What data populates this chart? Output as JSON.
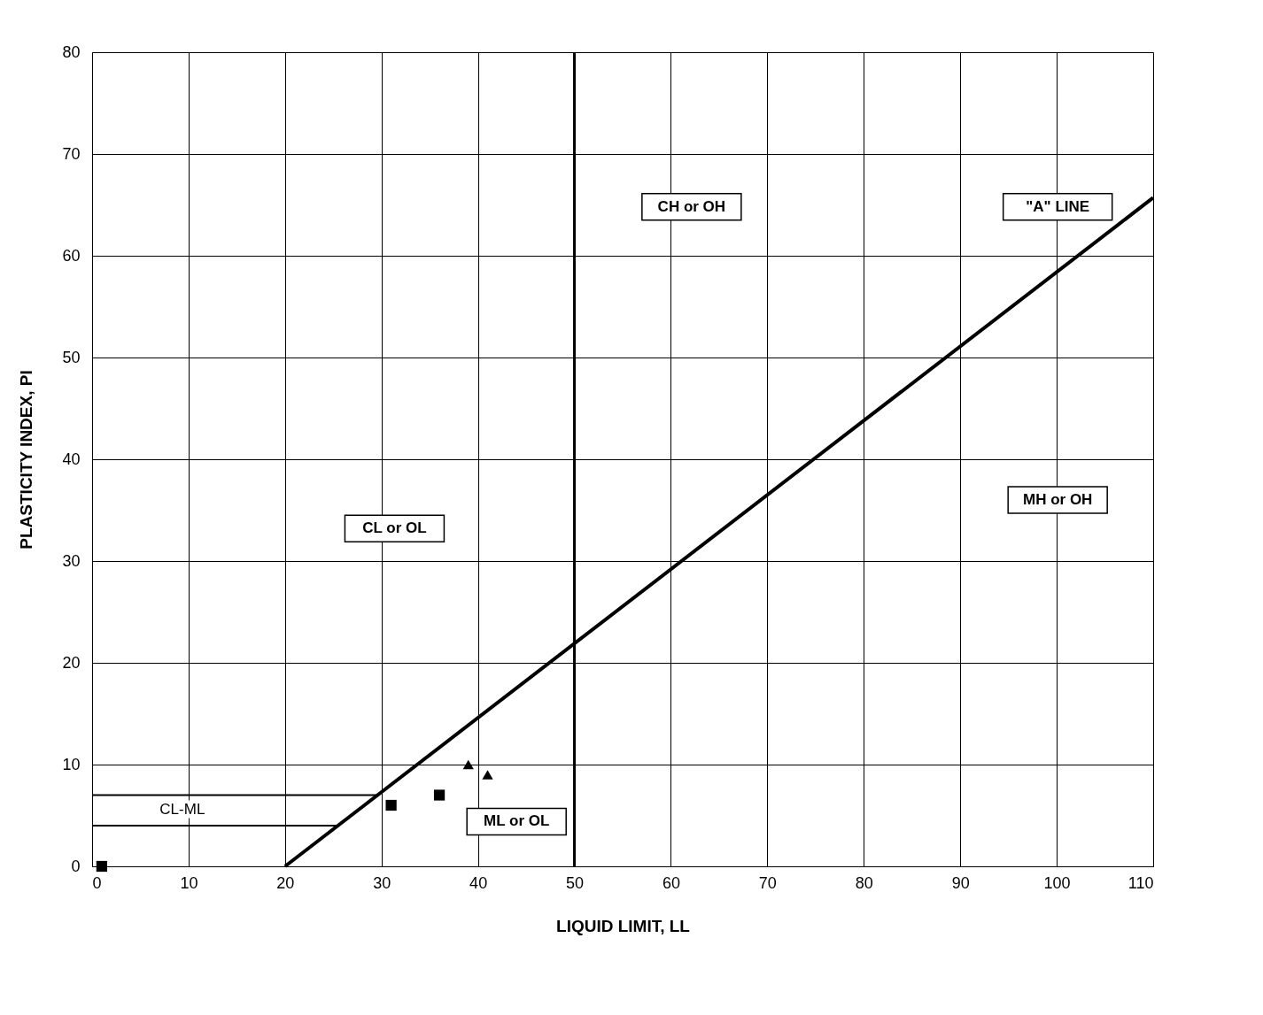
{
  "chart_data": {
    "type": "scatter",
    "xlabel": "LIQUID LIMIT, LL",
    "ylabel": "PLASTICITY INDEX, PI",
    "xlim": [
      0,
      110
    ],
    "ylim": [
      0,
      80
    ],
    "xticks": [
      0,
      10,
      20,
      30,
      40,
      50,
      60,
      70,
      80,
      90,
      100,
      110
    ],
    "yticks": [
      0,
      10,
      20,
      30,
      40,
      50,
      60,
      70,
      80
    ],
    "grid": true,
    "series": [
      {
        "type": "line",
        "color": "#000000",
        "x": [
          20,
          110
        ],
        "values": [
          0,
          65.7
        ],
        "line_style": "solid",
        "marker": "none"
      },
      {
        "type": "scatter",
        "color": "#000000",
        "x": [
          1
        ],
        "values": [
          0
        ],
        "marker": "square"
      },
      {
        "type": "scatter",
        "color": "#000000",
        "x": [
          31
        ],
        "values": [
          6
        ],
        "marker": "square"
      },
      {
        "type": "scatter",
        "color": "#000000",
        "x": [
          36
        ],
        "values": [
          7
        ],
        "marker": "square"
      },
      {
        "type": "scatter",
        "color": "#000000",
        "x": [
          39
        ],
        "values": [
          10
        ],
        "marker": "triangle"
      },
      {
        "type": "scatter",
        "color": "#000000",
        "x": [
          41
        ],
        "values": [
          9
        ],
        "marker": "triangle"
      }
    ],
    "ref_lines": [
      {
        "axis": "x",
        "value": 50,
        "color": "#000000"
      },
      {
        "axis": "y",
        "value": 4,
        "color": "#000000"
      },
      {
        "axis": "y",
        "value": 7,
        "color": "#000000"
      }
    ],
    "annotations": [
      "CH or OH",
      "\"A\"  LINE",
      "MH or OH",
      "CL or OL",
      "ML or OL",
      "CL-ML"
    ]
  }
}
